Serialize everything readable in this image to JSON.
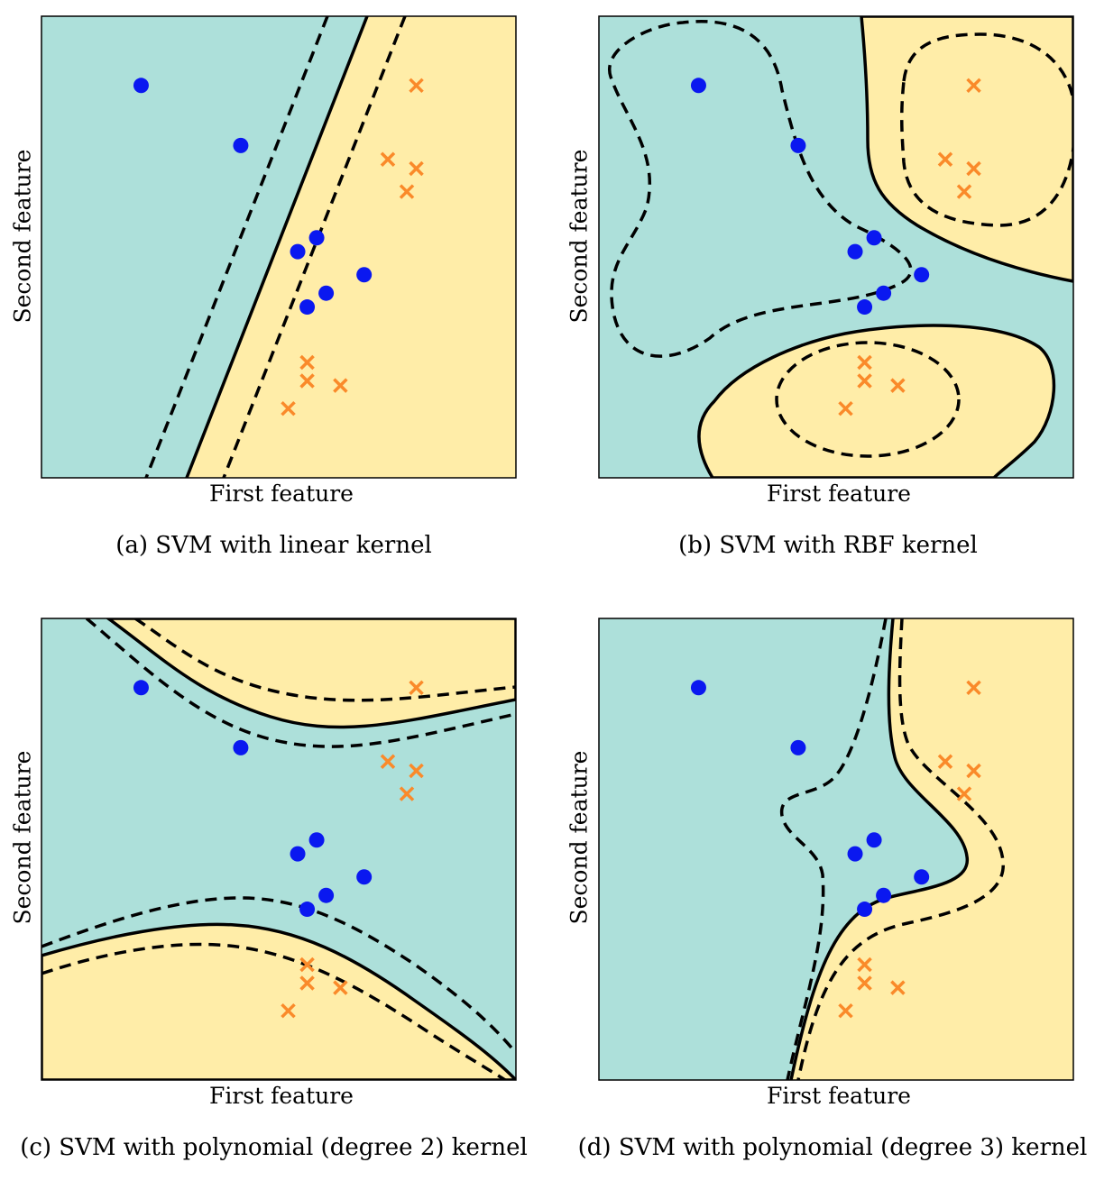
{
  "colors": {
    "class0_region": "#ade0da",
    "class1_region": "#ffeda8",
    "class0_points": "#0a18f0",
    "class1_points": "#fa8a2a",
    "boundary": "#000000"
  },
  "chart_data": [
    {
      "type": "scatter",
      "caption": "(a) SVM with linear kernel",
      "xlabel": "First feature",
      "ylabel": "Second feature",
      "kernel": "linear",
      "series": [
        {
          "marker": "circle",
          "color": "blue",
          "x": [
            0.21,
            0.42,
            0.58,
            0.54,
            0.6,
            0.68,
            0.56
          ],
          "y": [
            0.85,
            0.72,
            0.52,
            0.49,
            0.4,
            0.44,
            0.37
          ]
        },
        {
          "marker": "x",
          "color": "orange",
          "x": [
            0.79,
            0.73,
            0.79,
            0.77,
            0.56,
            0.56,
            0.63,
            0.52
          ],
          "y": [
            0.85,
            0.69,
            0.67,
            0.62,
            0.25,
            0.21,
            0.2,
            0.15
          ]
        }
      ]
    },
    {
      "type": "scatter",
      "caption": "(b) SVM with RBF kernel",
      "xlabel": "First feature",
      "ylabel": "Second feature",
      "kernel": "rbf"
    },
    {
      "type": "scatter",
      "caption": "(c) SVM with polynomial (degree 2) kernel",
      "xlabel": "First feature",
      "ylabel": "Second feature",
      "kernel": "polynomial degree 2"
    },
    {
      "type": "scatter",
      "caption": "(d) SVM with polynomial (degree 3) kernel",
      "xlabel": "First feature",
      "ylabel": "Second feature",
      "kernel": "polynomial degree 3"
    }
  ]
}
